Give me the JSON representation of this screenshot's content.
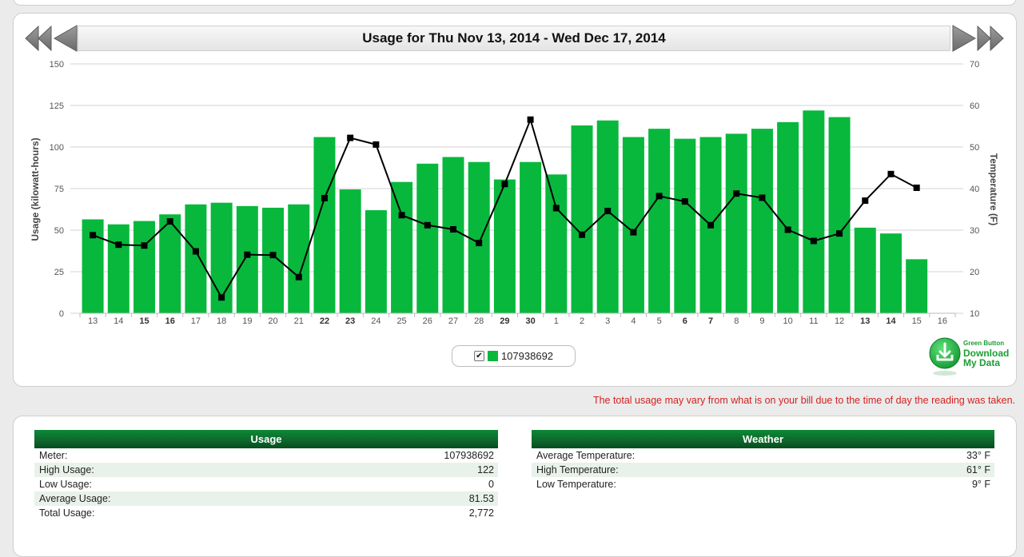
{
  "chart": {
    "title": "Usage for Thu Nov 13, 2014 - Wed Dec 17, 2014",
    "legend_label": "107938692",
    "legend_checked": true,
    "bar_color": "#08b83c",
    "line_color": "#000000"
  },
  "chart_data": {
    "type": "bar",
    "title": "Usage for Thu Nov 13, 2014 - Wed Dec 17, 2014",
    "categories": [
      "13",
      "14",
      "15",
      "16",
      "17",
      "18",
      "19",
      "20",
      "21",
      "22",
      "23",
      "24",
      "25",
      "26",
      "27",
      "28",
      "29",
      "30",
      "1",
      "2",
      "3",
      "4",
      "5",
      "6",
      "7",
      "8",
      "9",
      "10",
      "11",
      "12",
      "13",
      "14",
      "15",
      "16"
    ],
    "bold_categories": [
      "15",
      "16",
      "22",
      "23",
      "29",
      "30",
      "6",
      "7",
      "13",
      "14"
    ],
    "ylabel": "Usage (kilowatt-hours)",
    "ylabel_right": "Temperature (F)",
    "ylim": [
      0,
      150
    ],
    "yticks": [
      0,
      25,
      50,
      75,
      100,
      125,
      150
    ],
    "ylim_right": [
      10,
      70
    ],
    "yticks_right": [
      10,
      20,
      30,
      40,
      50,
      60,
      70
    ],
    "grid": true,
    "legend_position": "bottom-center",
    "series": [
      {
        "name": "107938692",
        "type": "bar",
        "axis": "left",
        "values": [
          56.5,
          53.5,
          55.5,
          59.5,
          65.5,
          66.5,
          64.5,
          63.5,
          65.5,
          106,
          74.5,
          62,
          79,
          90,
          94,
          91,
          80.5,
          91,
          83.5,
          113,
          116,
          106,
          111,
          105,
          106,
          108,
          111,
          115,
          122,
          118,
          51.5,
          48,
          32.5,
          null
        ]
      },
      {
        "type": "line",
        "axis": "right",
        "values": [
          28.8,
          26.5,
          26.3,
          32.1,
          24.9,
          13.8,
          24.1,
          24,
          18.7,
          37.7,
          52.2,
          50.6,
          33.6,
          31.2,
          30.2,
          26.9,
          41.1,
          56.6,
          35.3,
          28.9,
          34.6,
          29.5,
          38.2,
          36.9,
          31.2,
          38.8,
          37.8,
          30.1,
          27.4,
          29.2,
          37.1,
          43.5,
          40.2,
          null
        ]
      }
    ]
  },
  "disclaimer": "The total usage may vary from what is on your bill due to the time of day the reading was taken.",
  "green_button": {
    "small": "Green Button",
    "line1": "Download",
    "line2": "My Data"
  },
  "usage_table": {
    "title": "Usage",
    "rows": [
      {
        "label": "Meter:",
        "value": "107938692"
      },
      {
        "label": "High Usage:",
        "value": "122"
      },
      {
        "label": "Low Usage:",
        "value": "0"
      },
      {
        "label": "Average Usage:",
        "value": "81.53"
      },
      {
        "label": "Total Usage:",
        "value": "2,772"
      }
    ]
  },
  "weather_table": {
    "title": "Weather",
    "rows": [
      {
        "label": "Average Temperature:",
        "value": "33° F"
      },
      {
        "label": "High Temperature:",
        "value": "61° F"
      },
      {
        "label": "Low Temperature:",
        "value": "9° F"
      }
    ]
  }
}
